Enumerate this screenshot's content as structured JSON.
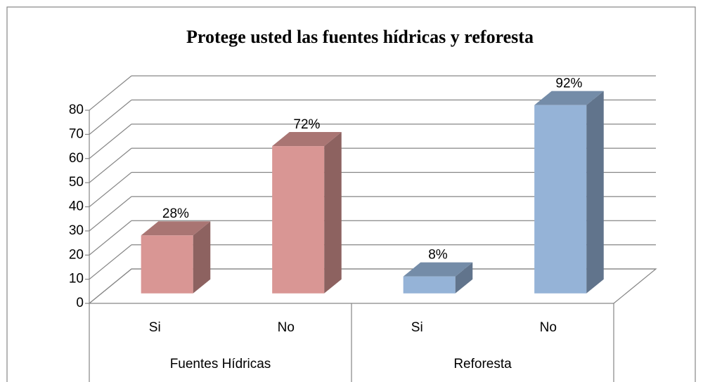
{
  "chart_data": {
    "type": "bar3d",
    "title": "Protege usted las fuentes hídricas y reforesta",
    "categories": [
      "Si",
      "No",
      "Si",
      "No"
    ],
    "groups": [
      "Fuentes Hídricas",
      "Reforesta"
    ],
    "values": [
      24,
      61,
      7,
      78
    ],
    "data_labels": [
      "28%",
      "72%",
      "8%",
      "92%"
    ],
    "colors": [
      "#d99694",
      "#d99694",
      "#95b3d7",
      "#95b3d7"
    ],
    "ylim": [
      0,
      80
    ],
    "yticks": [
      0,
      10,
      20,
      30,
      40,
      50,
      60,
      70,
      80
    ],
    "grid": true
  }
}
